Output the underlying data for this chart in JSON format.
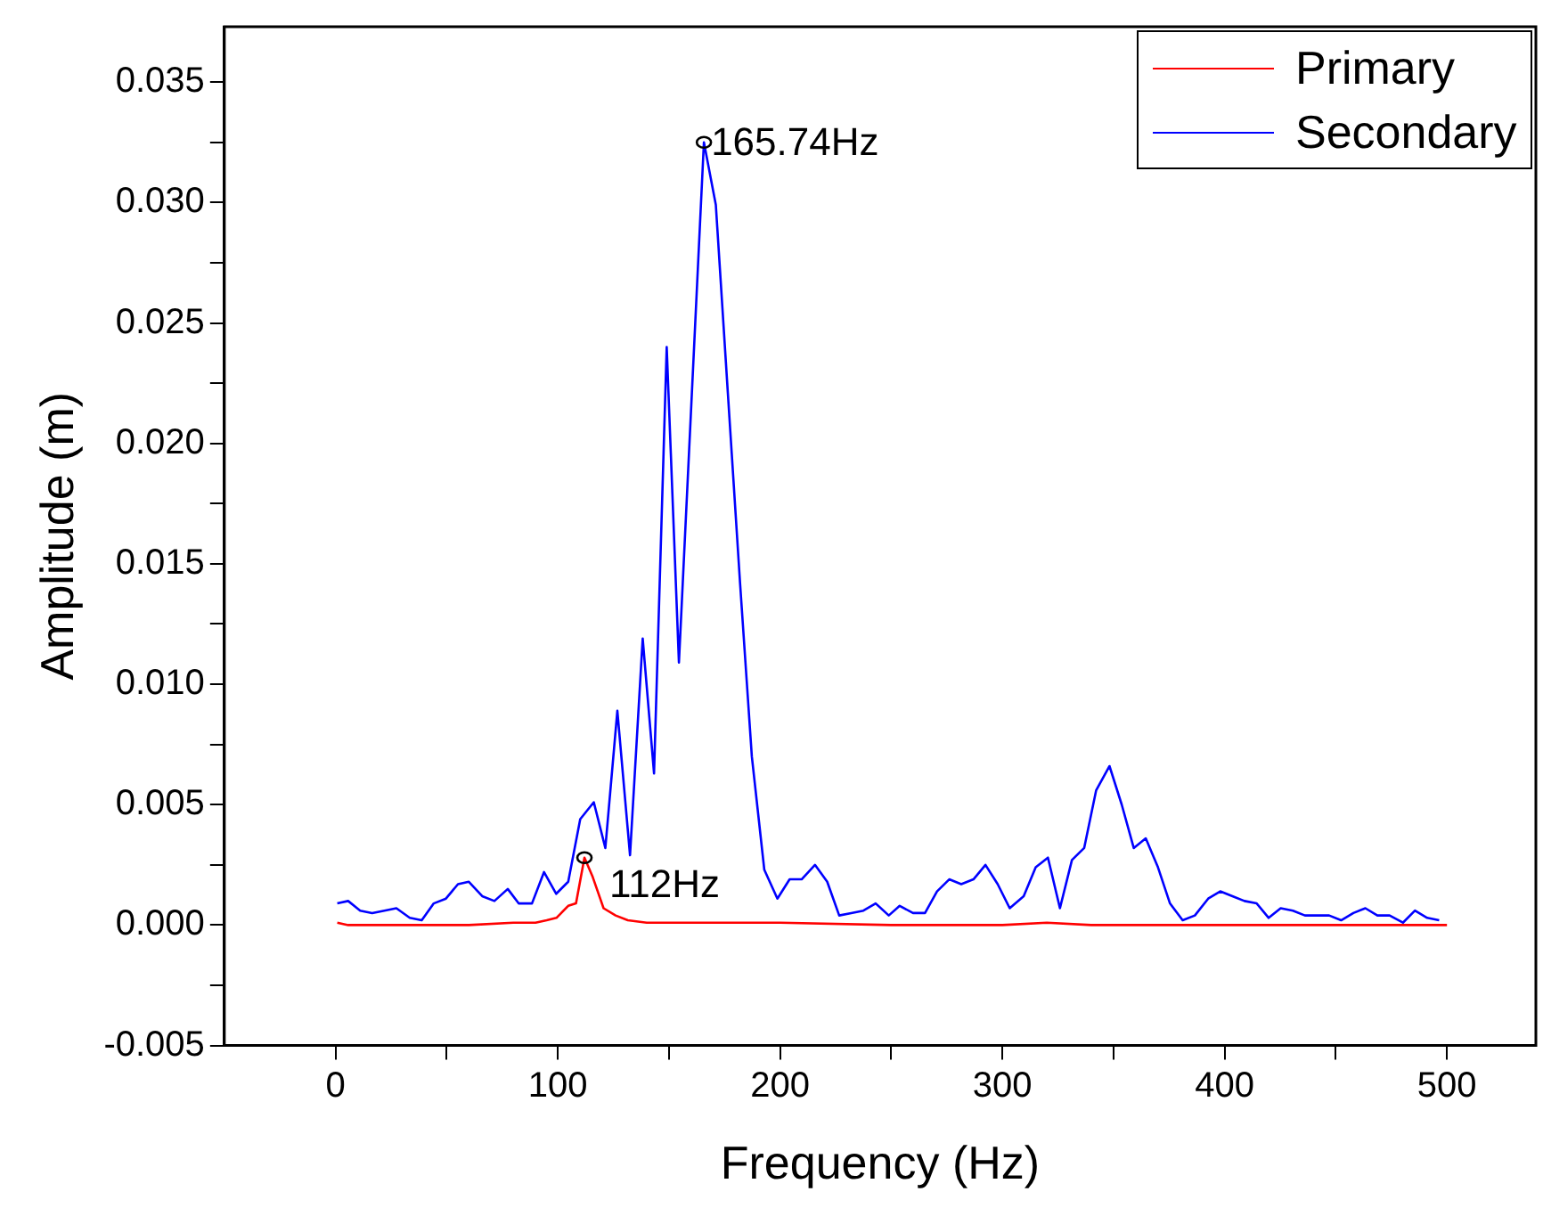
{
  "chart_data": {
    "type": "line",
    "xlabel": "Frequency (Hz)",
    "ylabel": "Amplitude (m)",
    "xlim": [
      -50,
      540
    ],
    "ylim": [
      -0.005,
      0.0373
    ],
    "xticks": [
      0,
      {
        "value": 50,
        "label": null
      },
      100,
      {
        "value": 150,
        "label": null
      },
      200,
      {
        "value": 250,
        "label": null
      },
      300,
      {
        "value": 350,
        "label": null
      },
      400,
      {
        "value": 450,
        "label": null
      },
      500
    ],
    "yticks": [
      {
        "value": -0.005,
        "label": "-0.005"
      },
      {
        "value": -0.0025,
        "label": null
      },
      {
        "value": 0,
        "label": "0.000"
      },
      {
        "value": 0.0025,
        "label": null
      },
      {
        "value": 0.005,
        "label": "0.005"
      },
      {
        "value": 0.0075,
        "label": null
      },
      {
        "value": 0.01,
        "label": "0.010"
      },
      {
        "value": 0.0125,
        "label": null
      },
      {
        "value": 0.015,
        "label": "0.015"
      },
      {
        "value": 0.0175,
        "label": null
      },
      {
        "value": 0.02,
        "label": "0.020"
      },
      {
        "value": 0.0225,
        "label": null
      },
      {
        "value": 0.025,
        "label": "0.025"
      },
      {
        "value": 0.0275,
        "label": null
      },
      {
        "value": 0.03,
        "label": "0.030"
      },
      {
        "value": 0.0325,
        "label": null
      },
      {
        "value": 0.035,
        "label": "0.035"
      }
    ],
    "legend": "top right",
    "marker": "none",
    "annotations": [
      {
        "text": "165.74Hz",
        "x": 165.74,
        "y": 0.0325
      },
      {
        "text": "112Hz",
        "x": 112,
        "y": 0.0028
      }
    ],
    "series": [
      {
        "name": "Primary",
        "color": "#ff0000",
        "x": [
          0.8,
          5.7,
          20,
          40,
          60,
          80,
          90,
          95,
          99.4,
          104.7,
          108.2,
          112,
          115.7,
          120.6,
          126,
          131.5,
          140,
          160,
          200,
          250,
          300,
          320,
          340,
          400,
          450,
          500
        ],
        "values": [
          0.0001,
          0,
          0,
          0,
          0,
          0.0001,
          0.0001,
          0.0002,
          0.0003,
          0.0008,
          0.0009,
          0.0028,
          0.002,
          0.0007,
          0.0004,
          0.0002,
          0.0001,
          0.0001,
          0.0001,
          0,
          0,
          0.0001,
          0,
          0,
          0,
          0
        ]
      },
      {
        "name": "Secondary",
        "color": "#0000ff",
        "x": [
          0.8,
          5.7,
          11.1,
          16.5,
          22,
          27.4,
          33.4,
          38.8,
          44.2,
          49.7,
          55.1,
          60,
          66,
          71.5,
          77.5,
          82.4,
          88.4,
          93.8,
          99.3,
          104.7,
          110.1,
          116.2,
          121.4,
          126.8,
          132.5,
          138.2,
          143.3,
          149,
          154.5,
          165.74,
          171.1,
          176.5,
          182,
          187.3,
          192.9,
          198.8,
          204.3,
          209.7,
          215.7,
          221.2,
          226.6,
          232,
          237.5,
          243,
          248.9,
          253.8,
          259.8,
          265.2,
          270.6,
          276.1,
          281.5,
          287,
          292.4,
          297.9,
          303.3,
          309.6,
          315,
          320.5,
          325.9,
          331.3,
          336.8,
          342.2,
          348.2,
          353.7,
          359.1,
          364.5,
          370,
          375.4,
          381.1,
          386.6,
          392.6,
          398,
          403.5,
          408.9,
          414.4,
          419.8,
          425.2,
          430.7,
          436.1,
          441.5,
          447,
          452.4,
          457.9,
          463.3,
          468.7,
          474.2,
          480.2,
          485.6,
          491.1,
          496.5
        ],
        "values": [
          0.0009,
          0.001,
          0.0006,
          0.0005,
          0.0006,
          0.0007,
          0.0003,
          0.0002,
          0.0009,
          0.0011,
          0.0017,
          0.0018,
          0.0012,
          0.001,
          0.0015,
          0.0009,
          0.0009,
          0.0022,
          0.0013,
          0.0018,
          0.0044,
          0.0051,
          0.0032,
          0.0089,
          0.0029,
          0.0119,
          0.0063,
          0.024,
          0.0109,
          0.0325,
          0.0299,
          0.0221,
          0.0142,
          0.007,
          0.0023,
          0.0011,
          0.0019,
          0.0019,
          0.0025,
          0.0018,
          0.0004,
          0.0005,
          0.0006,
          0.0009,
          0.0004,
          0.0008,
          0.0005,
          0.0005,
          0.0014,
          0.0019,
          0.0017,
          0.0019,
          0.0025,
          0.0017,
          0.0007,
          0.0012,
          0.0024,
          0.0028,
          0.0007,
          0.0027,
          0.0032,
          0.0056,
          0.0066,
          0.005,
          0.0032,
          0.0036,
          0.0024,
          0.0009,
          0.0002,
          0.0004,
          0.0011,
          0.0014,
          0.0012,
          0.001,
          0.0009,
          0.0003,
          0.0007,
          0.0006,
          0.0004,
          0.0004,
          0.0004,
          0.0002,
          0.0005,
          0.0007,
          0.0004,
          0.0004,
          0.0001,
          0.0006,
          0.0003,
          0.0002
        ]
      }
    ]
  }
}
